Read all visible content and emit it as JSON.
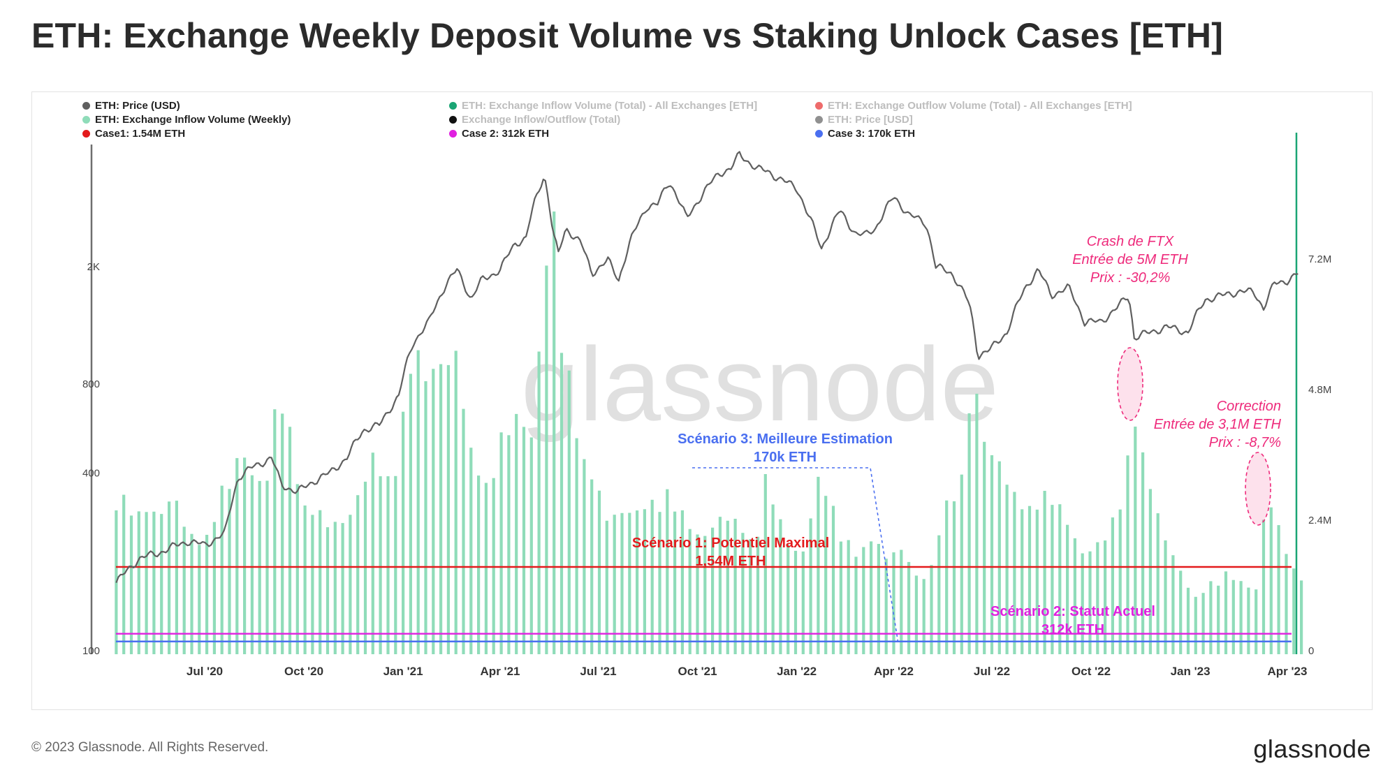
{
  "title": "ETH: Exchange Weekly Deposit Volume vs Staking Unlock Cases [ETH]",
  "footer": {
    "copyright": "© 2023 Glassnode. All Rights Reserved.",
    "logo": "glassnode"
  },
  "watermark": "glassnode",
  "colors": {
    "price": "#5f5f5f",
    "inflow": "#8fdcb9",
    "case1": "#e31a1c",
    "case2": "#e020e0",
    "case3": "#4a6ff0",
    "annotation": "#ee2a7b",
    "right_axis": "#1aa574",
    "scenario3_text": "#4a6ff0"
  },
  "legend": [
    {
      "label": "ETH: Price (USD)",
      "color": "#5f5f5f",
      "active": true
    },
    {
      "label": "ETH: Exchange Inflow Volume (Weekly)",
      "color": "#8fdcb9",
      "active": true
    },
    {
      "label": "Case1: 1.54M ETH",
      "color": "#e31a1c",
      "active": true
    },
    {
      "label": "ETH: Exchange Inflow Volume (Total) - All Exchanges [ETH]",
      "color": "#1aa574",
      "active": false
    },
    {
      "label": "Exchange Inflow/Outflow (Total)",
      "color": "#111111",
      "active": false
    },
    {
      "label": "Case 2: 312k ETH",
      "color": "#e020e0",
      "active": true
    },
    {
      "label": "ETH: Exchange Outflow Volume (Total) - All Exchanges [ETH]",
      "color": "#ee6b6b",
      "active": false
    },
    {
      "label": "ETH: Price [USD]",
      "color": "#909090",
      "active": false
    },
    {
      "label": "Case 3: 170k ETH",
      "color": "#4a6ff0",
      "active": true
    }
  ],
  "annotations": {
    "scenario1": [
      "Scénario 1: Potentiel Maximal",
      "1,54M ETH"
    ],
    "scenario2": [
      "Scénario 2: Statut Actuel",
      "312k ETH"
    ],
    "scenario3": [
      "Scénario 3: Meilleure Estimation",
      "170k ETH"
    ],
    "ftx": [
      "Crash de FTX",
      "Entrée de 5M ETH",
      "Prix : -30,2%"
    ],
    "correction": [
      "Correction",
      "Entrée de 3,1M ETH",
      "Prix : -8,7%"
    ]
  },
  "chart_data": {
    "type": "line",
    "x_ticks": [
      "Jul '20",
      "Oct '20",
      "Jan '21",
      "Apr '21",
      "Jul '21",
      "Oct '21",
      "Jan '22",
      "Apr '22",
      "Jul '22",
      "Oct '22",
      "Jan '23",
      "Apr '23"
    ],
    "y_left": {
      "label": "",
      "scale": "log",
      "ticks": [
        "100",
        "400",
        "800",
        "2K"
      ],
      "range": [
        100,
        5000
      ]
    },
    "y_right": {
      "label": "",
      "ticks": [
        "0",
        "2.4M",
        "4.8M",
        "7.2M"
      ],
      "range": [
        0,
        9000000
      ]
    },
    "horizontal_lines": [
      {
        "name": "Case1: 1.54M ETH",
        "value": 1540000
      },
      {
        "name": "Case 2: 312k ETH",
        "value": 312000
      },
      {
        "name": "Case 3: 170k ETH",
        "value": 170000
      }
    ],
    "series": [
      {
        "name": "ETH: Price (USD)",
        "axis": "left",
        "points": [
          [
            "2020-04-10",
            170
          ],
          [
            "2020-05-01",
            205
          ],
          [
            "2020-05-20",
            215
          ],
          [
            "2020-06-15",
            235
          ],
          [
            "2020-07-01",
            228
          ],
          [
            "2020-07-20",
            250
          ],
          [
            "2020-08-01",
            385
          ],
          [
            "2020-08-15",
            420
          ],
          [
            "2020-09-01",
            450
          ],
          [
            "2020-09-10",
            365
          ],
          [
            "2020-09-25",
            345
          ],
          [
            "2020-10-10",
            375
          ],
          [
            "2020-10-25",
            400
          ],
          [
            "2020-11-10",
            450
          ],
          [
            "2020-11-25",
            560
          ],
          [
            "2020-12-10",
            580
          ],
          [
            "2020-12-28",
            730
          ],
          [
            "2021-01-10",
            1100
          ],
          [
            "2021-01-25",
            1300
          ],
          [
            "2021-02-10",
            1750
          ],
          [
            "2021-02-20",
            1950
          ],
          [
            "2021-03-05",
            1550
          ],
          [
            "2021-03-15",
            1800
          ],
          [
            "2021-04-01",
            1950
          ],
          [
            "2021-04-15",
            2400
          ],
          [
            "2021-04-25",
            2500
          ],
          [
            "2021-05-03",
            3300
          ],
          [
            "2021-05-12",
            4100
          ],
          [
            "2021-05-20",
            2600
          ],
          [
            "2021-05-25",
            2200
          ],
          [
            "2021-06-01",
            2700
          ],
          [
            "2021-06-15",
            2400
          ],
          [
            "2021-06-25",
            1900
          ],
          [
            "2021-07-10",
            2100
          ],
          [
            "2021-07-20",
            1800
          ],
          [
            "2021-08-01",
            2500
          ],
          [
            "2021-08-15",
            3200
          ],
          [
            "2021-08-25",
            3250
          ],
          [
            "2021-09-05",
            3900
          ],
          [
            "2021-09-21",
            2900
          ],
          [
            "2021-10-05",
            3500
          ],
          [
            "2021-10-21",
            4150
          ],
          [
            "2021-11-01",
            4300
          ],
          [
            "2021-11-09",
            4800
          ],
          [
            "2021-11-25",
            4300
          ],
          [
            "2021-12-05",
            4200
          ],
          [
            "2021-12-20",
            3900
          ],
          [
            "2022-01-01",
            3700
          ],
          [
            "2022-01-10",
            3100
          ],
          [
            "2022-01-24",
            2300
          ],
          [
            "2022-02-10",
            3100
          ],
          [
            "2022-02-24",
            2600
          ],
          [
            "2022-03-05",
            2550
          ],
          [
            "2022-03-15",
            2700
          ],
          [
            "2022-04-01",
            3450
          ],
          [
            "2022-04-15",
            3000
          ],
          [
            "2022-05-01",
            2800
          ],
          [
            "2022-05-10",
            2000
          ],
          [
            "2022-05-25",
            1900
          ],
          [
            "2022-06-10",
            1500
          ],
          [
            "2022-06-18",
            1000
          ],
          [
            "2022-06-30",
            1050
          ],
          [
            "2022-07-15",
            1200
          ],
          [
            "2022-08-01",
            1700
          ],
          [
            "2022-08-13",
            1950
          ],
          [
            "2022-08-25",
            1600
          ],
          [
            "2022-09-10",
            1700
          ],
          [
            "2022-09-25",
            1300
          ],
          [
            "2022-10-10",
            1300
          ],
          [
            "2022-10-25",
            1450
          ],
          [
            "2022-11-05",
            1600
          ],
          [
            "2022-11-10",
            1150
          ],
          [
            "2022-11-25",
            1200
          ],
          [
            "2022-12-10",
            1250
          ],
          [
            "2022-12-30",
            1200
          ],
          [
            "2023-01-15",
            1550
          ],
          [
            "2023-02-01",
            1600
          ],
          [
            "2023-02-15",
            1650
          ],
          [
            "2023-03-01",
            1640
          ],
          [
            "2023-03-10",
            1450
          ],
          [
            "2023-03-20",
            1750
          ],
          [
            "2023-04-01",
            1800
          ],
          [
            "2023-04-12",
            1900
          ]
        ]
      },
      {
        "name": "ETH: Exchange Inflow Volume (Weekly)",
        "axis": "right",
        "points": [
          [
            "2020-04-10",
            3000000
          ],
          [
            "2020-04-25",
            2800000
          ],
          [
            "2020-05-10",
            2950000
          ],
          [
            "2020-05-20",
            2600000
          ],
          [
            "2020-06-01",
            3000000
          ],
          [
            "2020-06-15",
            2400000
          ],
          [
            "2020-07-01",
            2200000
          ],
          [
            "2020-07-15",
            3000000
          ],
          [
            "2020-07-25",
            3300000
          ],
          [
            "2020-08-05",
            4000000
          ],
          [
            "2020-08-20",
            3500000
          ],
          [
            "2020-09-01",
            3400000
          ],
          [
            "2020-09-06",
            5300000
          ],
          [
            "2020-09-20",
            4000000
          ],
          [
            "2020-10-01",
            3000000
          ],
          [
            "2020-10-15",
            2800000
          ],
          [
            "2020-10-25",
            2400000
          ],
          [
            "2020-11-10",
            2500000
          ],
          [
            "2020-11-25",
            3500000
          ],
          [
            "2020-12-05",
            4000000
          ],
          [
            "2020-12-20",
            3100000
          ],
          [
            "2021-01-05",
            5000000
          ],
          [
            "2021-01-12",
            6800000
          ],
          [
            "2021-01-20",
            5600000
          ],
          [
            "2021-02-05",
            5500000
          ],
          [
            "2021-02-20",
            5700000
          ],
          [
            "2021-03-05",
            4200000
          ],
          [
            "2021-03-20",
            3200000
          ],
          [
            "2021-04-01",
            4000000
          ],
          [
            "2021-04-18",
            4700000
          ],
          [
            "2021-05-01",
            4500000
          ],
          [
            "2021-05-19",
            9000000
          ],
          [
            "2021-05-25",
            6500000
          ],
          [
            "2021-06-10",
            4600000
          ],
          [
            "2021-06-25",
            3600000
          ],
          [
            "2021-07-10",
            2500000
          ],
          [
            "2021-07-25",
            2700000
          ],
          [
            "2021-08-10",
            3000000
          ],
          [
            "2021-08-25",
            2900000
          ],
          [
            "2021-09-07",
            3000000
          ],
          [
            "2021-09-21",
            2600000
          ],
          [
            "2021-10-10",
            2300000
          ],
          [
            "2021-10-25",
            2600000
          ],
          [
            "2021-11-10",
            2500000
          ],
          [
            "2021-11-25",
            2300000
          ],
          [
            "2021-12-04",
            3500000
          ],
          [
            "2021-12-20",
            2200000
          ],
          [
            "2022-01-05",
            1900000
          ],
          [
            "2022-01-22",
            3500000
          ],
          [
            "2022-02-10",
            2300000
          ],
          [
            "2022-02-25",
            2000000
          ],
          [
            "2022-03-10",
            2300000
          ],
          [
            "2022-03-25",
            1800000
          ],
          [
            "2022-04-10",
            2000000
          ],
          [
            "2022-04-25",
            1500000
          ],
          [
            "2022-05-05",
            1500000
          ],
          [
            "2022-05-12",
            2400000
          ],
          [
            "2022-05-25",
            3000000
          ],
          [
            "2022-06-05",
            3600000
          ],
          [
            "2022-06-13",
            5900000
          ],
          [
            "2022-06-25",
            4000000
          ],
          [
            "2022-07-10",
            3500000
          ],
          [
            "2022-07-25",
            3000000
          ],
          [
            "2022-08-10",
            3000000
          ],
          [
            "2022-08-25",
            3000000
          ],
          [
            "2022-09-10",
            2500000
          ],
          [
            "2022-09-25",
            2000000
          ],
          [
            "2022-10-10",
            2100000
          ],
          [
            "2022-10-25",
            2600000
          ],
          [
            "2022-11-05",
            4000000
          ],
          [
            "2022-11-09",
            5000000
          ],
          [
            "2022-11-20",
            3800000
          ],
          [
            "2022-12-05",
            2300000
          ],
          [
            "2022-12-20",
            1700000
          ],
          [
            "2023-01-05",
            1100000
          ],
          [
            "2023-01-20",
            1300000
          ],
          [
            "2023-02-05",
            1500000
          ],
          [
            "2023-02-20",
            1400000
          ],
          [
            "2023-03-05",
            1200000
          ],
          [
            "2023-03-12",
            3100000
          ],
          [
            "2023-03-25",
            2300000
          ],
          [
            "2023-04-05",
            1700000
          ],
          [
            "2023-04-12",
            1500000
          ]
        ]
      }
    ]
  }
}
